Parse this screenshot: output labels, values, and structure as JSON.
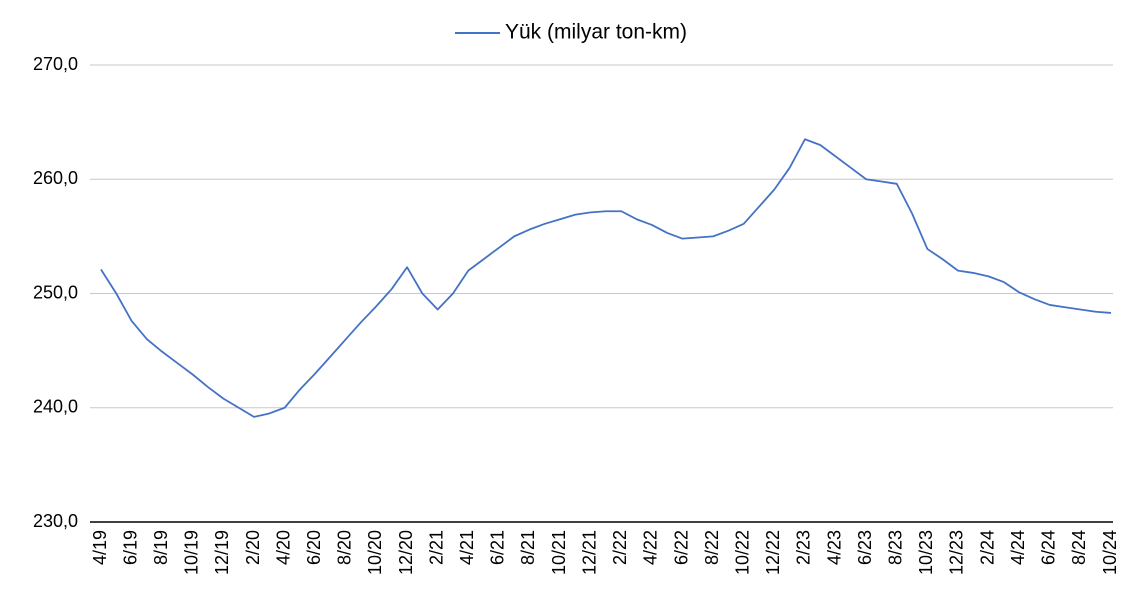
{
  "chart_data": {
    "type": "line",
    "categories": [
      "4/19",
      null,
      "6/19",
      null,
      "8/19",
      null,
      "10/19",
      null,
      "12/19",
      null,
      "2/20",
      null,
      "4/20",
      null,
      "6/20",
      null,
      "8/20",
      null,
      "10/20",
      null,
      "12/20",
      null,
      "2/21",
      null,
      "4/21",
      null,
      "6/21",
      null,
      "8/21",
      null,
      "10/21",
      null,
      "12/21",
      null,
      "2/22",
      null,
      "4/22",
      null,
      "6/22",
      null,
      "8/22",
      null,
      "10/22",
      null,
      "12/22",
      null,
      "2/23",
      null,
      "4/23",
      null,
      "6/23",
      null,
      "8/23",
      null,
      "10/23",
      null,
      "12/23",
      null,
      "2/24",
      null,
      "4/24",
      null,
      "6/24",
      null,
      "8/24",
      null,
      "10/24"
    ],
    "series": [
      {
        "name": "Yük (milyar ton-km)",
        "color": "#4472c4",
        "values": [
          252.1,
          250.0,
          247.6,
          246.0,
          244.9,
          243.9,
          242.9,
          241.8,
          240.8,
          240.0,
          239.2,
          239.5,
          240.0,
          241.6,
          243.0,
          244.5,
          246.0,
          247.5,
          248.9,
          250.4,
          252.3,
          250.0,
          248.6,
          250.0,
          252.0,
          253.0,
          254.0,
          255.0,
          255.6,
          256.1,
          256.5,
          256.9,
          257.1,
          257.2,
          257.2,
          256.5,
          256.0,
          255.3,
          254.8,
          254.9,
          255.0,
          255.5,
          256.1,
          257.6,
          259.1,
          261.0,
          263.5,
          263.0,
          262.0,
          261.0,
          260.0,
          259.8,
          259.6,
          257.0,
          253.9,
          253.0,
          252.0,
          251.8,
          251.5,
          251.0,
          250.1,
          249.5,
          249.0,
          248.8,
          248.6,
          248.4,
          248.3
        ]
      }
    ],
    "ylim": [
      230,
      270
    ],
    "yticks": [
      {
        "value": 230,
        "label": "230,0"
      },
      {
        "value": 240,
        "label": "240,0"
      },
      {
        "value": 250,
        "label": "250,0"
      },
      {
        "value": 260,
        "label": "260,0"
      },
      {
        "value": 270,
        "label": "270,0"
      }
    ],
    "grid": true,
    "legend": "top"
  }
}
